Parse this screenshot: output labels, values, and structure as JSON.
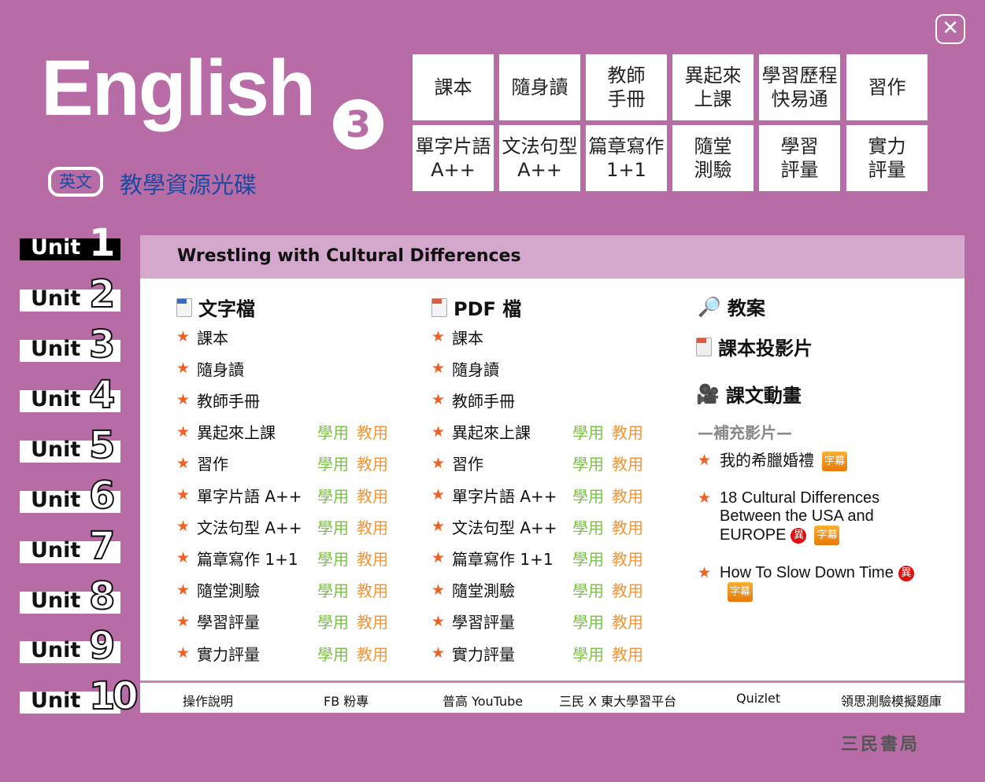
{
  "header": {
    "logo_text": "English",
    "logo_number": "3",
    "subject_badge": "英文",
    "subtitle": "教學資源光碟",
    "close_icon": "close-x-icon"
  },
  "grid_buttons": [
    "課本",
    "隨身讀",
    "教師\n手冊",
    "異起來\n上課",
    "學習歷程\n快易通",
    "習作",
    "單字片語\nA++",
    "文法句型\nA++",
    "篇章寫作\n1+1",
    "隨堂\n測驗",
    "學習\n評量",
    "實力\n評量"
  ],
  "units": [
    {
      "label": "Unit",
      "num": "1"
    },
    {
      "label": "Unit",
      "num": "2"
    },
    {
      "label": "Unit",
      "num": "3"
    },
    {
      "label": "Unit",
      "num": "4"
    },
    {
      "label": "Unit",
      "num": "5"
    },
    {
      "label": "Unit",
      "num": "6"
    },
    {
      "label": "Unit",
      "num": "7"
    },
    {
      "label": "Unit",
      "num": "8"
    },
    {
      "label": "Unit",
      "num": "9"
    },
    {
      "label": "Unit",
      "num": "10"
    }
  ],
  "active_unit": "1",
  "panel": {
    "title": "Wrestling with Cultural Differences",
    "col_word": {
      "heading": "文字檔",
      "icon": "word-doc-icon"
    },
    "col_pdf": {
      "heading": "PDF 檔",
      "icon": "pdf-doc-icon"
    },
    "items": [
      "課本",
      "隨身讀",
      "教師手冊",
      "異起來上課",
      "習作",
      "單字片語 A++",
      "文法句型 A++",
      "篇章寫作 1+1",
      "隨堂測驗",
      "學習評量",
      "實力評量"
    ],
    "student_label": "學用",
    "teacher_label": "教用",
    "lesson_plan": "教案",
    "slides": "課本投影片",
    "animation": "課文動畫",
    "supplement_heading": "—補充影片—",
    "videos": [
      {
        "title": "我的希臘婚禮",
        "yi": "",
        "sub": "字幕"
      },
      {
        "title": "18 Cultural Differences Between the USA and EUROPE",
        "yi": "異",
        "sub": "字幕"
      },
      {
        "title": "How To Slow Down Time",
        "yi": "異",
        "sub": "字幕"
      }
    ]
  },
  "footer": [
    "操作說明",
    "FB 粉專",
    "普高 YouTube",
    "三民 X 東大學習平台",
    "Quizlet",
    "領思測驗模擬題庫"
  ],
  "publisher": "三民書局",
  "colors": {
    "background": "#b86ca6",
    "header_bar": "#d4a8cc",
    "subtitle": "#1b4aa0",
    "student": "#7cc04a",
    "teacher": "#f0963a",
    "star": "#f06020"
  }
}
